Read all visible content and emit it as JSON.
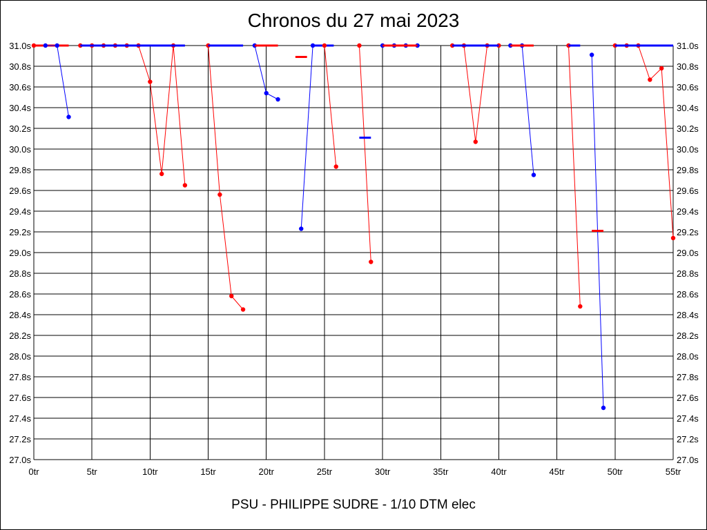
{
  "chart_data": {
    "type": "line",
    "title": "Chronos du 27 mai 2023",
    "subtitle": "PSU - PHILIPPE SUDRE - 1/10 DTM elec",
    "xlabel": "",
    "ylabel": "",
    "xlim": [
      0,
      55
    ],
    "ylim": [
      27.0,
      31.0
    ],
    "grid": true,
    "x_ticks": [
      0,
      5,
      10,
      15,
      20,
      25,
      30,
      35,
      40,
      45,
      50,
      55
    ],
    "x_tick_labels": [
      "0tr",
      "5tr",
      "10tr",
      "15tr",
      "20tr",
      "25tr",
      "30tr",
      "35tr",
      "40tr",
      "45tr",
      "50tr",
      "55tr"
    ],
    "y_ticks": [
      27.0,
      27.2,
      27.4,
      27.6,
      27.8,
      28.0,
      28.2,
      28.4,
      28.6,
      28.8,
      29.0,
      29.2,
      29.4,
      29.6,
      29.8,
      30.0,
      30.2,
      30.4,
      30.6,
      30.8,
      31.0
    ],
    "y_tick_labels": [
      "27.0s",
      "27.2s",
      "27.4s",
      "27.6s",
      "27.8s",
      "28.0s",
      "28.2s",
      "28.4s",
      "28.6s",
      "28.8s",
      "29.0s",
      "29.2s",
      "29.4s",
      "29.6s",
      "29.8s",
      "30.0s",
      "30.2s",
      "30.4s",
      "30.6s",
      "30.8s",
      "31.0s"
    ],
    "colors": {
      "red": "#ff0000",
      "blue": "#0000ff",
      "grid": "#000000"
    },
    "series": [
      {
        "color": "red",
        "points": [
          [
            0,
            31.0
          ]
        ],
        "avg": 31.0,
        "avg_range": [
          0,
          3
        ]
      },
      {
        "color": "blue",
        "points": [
          [
            1,
            31.0
          ],
          [
            2,
            31.0
          ],
          [
            3,
            30.31
          ]
        ]
      },
      {
        "color": "red",
        "points": [
          [
            4,
            31.0
          ],
          [
            5,
            31.0
          ],
          [
            6,
            31.0
          ],
          [
            7,
            31.0
          ],
          [
            8,
            31.0
          ],
          [
            9,
            31.0
          ],
          [
            10,
            30.65
          ],
          [
            11,
            29.76
          ],
          [
            12,
            31.0
          ],
          [
            13,
            29.65
          ]
        ]
      },
      {
        "color": "blue",
        "points": [],
        "avg": 31.0,
        "avg_range": [
          4,
          13
        ]
      },
      {
        "color": "red",
        "points": [
          [
            15,
            31.0
          ],
          [
            16,
            29.56
          ],
          [
            17,
            28.58
          ],
          [
            18,
            28.45
          ]
        ]
      },
      {
        "color": "blue",
        "points": [],
        "avg": 31.0,
        "avg_range": [
          15,
          18
        ]
      },
      {
        "color": "blue",
        "points": [
          [
            19,
            31.0
          ],
          [
            20,
            30.54
          ],
          [
            21,
            30.48
          ]
        ]
      },
      {
        "color": "red",
        "points": [],
        "avg": 31.0,
        "avg_range": [
          19,
          21
        ]
      },
      {
        "color": "red",
        "points": [],
        "avg": 30.89,
        "avg_range": [
          22.5,
          23.5
        ]
      },
      {
        "color": "blue",
        "points": [
          [
            23,
            29.23
          ],
          [
            24,
            31.0
          ]
        ],
        "avg": 31.0,
        "avg_range": [
          24,
          25.8
        ]
      },
      {
        "color": "red",
        "points": [
          [
            25,
            31.0
          ],
          [
            26,
            29.83
          ]
        ]
      },
      {
        "color": "red",
        "points": [
          [
            28,
            31.0
          ],
          [
            29,
            28.91
          ]
        ]
      },
      {
        "color": "blue",
        "points": [],
        "avg": 30.11,
        "avg_range": [
          28,
          29
        ]
      },
      {
        "color": "blue",
        "points": [
          [
            30,
            31.0
          ],
          [
            31,
            31.0
          ],
          [
            32,
            31.0
          ],
          [
            33,
            31.0
          ]
        ]
      },
      {
        "color": "red",
        "points": [],
        "avg": 31.0,
        "avg_range": [
          30,
          33
        ]
      },
      {
        "color": "red",
        "points": [
          [
            36,
            31.0
          ],
          [
            37,
            31.0
          ],
          [
            38,
            30.07
          ],
          [
            39,
            31.0
          ],
          [
            40,
            31.0
          ]
        ]
      },
      {
        "color": "blue",
        "points": [],
        "avg": 31.0,
        "avg_range": [
          36,
          40
        ]
      },
      {
        "color": "blue",
        "points": [
          [
            41,
            31.0
          ],
          [
            42,
            31.0
          ],
          [
            43,
            29.75
          ]
        ]
      },
      {
        "color": "red",
        "points": [],
        "avg": 31.0,
        "avg_range": [
          41,
          43
        ]
      },
      {
        "color": "red",
        "points": [
          [
            46,
            31.0
          ],
          [
            47,
            28.48
          ]
        ]
      },
      {
        "color": "blue",
        "points": [],
        "avg": 31.0,
        "avg_range": [
          46,
          47
        ]
      },
      {
        "color": "blue",
        "points": [
          [
            48,
            30.91
          ],
          [
            49,
            27.5
          ]
        ]
      },
      {
        "color": "red",
        "points": [],
        "avg": 29.21,
        "avg_range": [
          48,
          49
        ]
      },
      {
        "color": "red",
        "points": [
          [
            50,
            31.0
          ],
          [
            51,
            31.0
          ],
          [
            52,
            31.0
          ],
          [
            53,
            30.67
          ],
          [
            54,
            30.78
          ],
          [
            55,
            29.14
          ]
        ]
      },
      {
        "color": "blue",
        "points": [],
        "avg": 31.0,
        "avg_range": [
          50,
          55
        ]
      }
    ]
  }
}
